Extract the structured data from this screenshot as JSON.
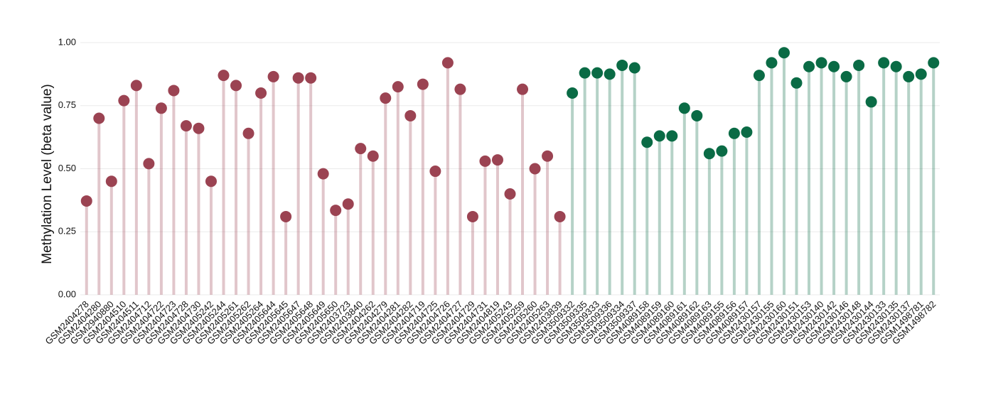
{
  "chart_data": {
    "type": "lollipop",
    "ylabel": "Methylation Level (beta value)",
    "ylim": [
      0,
      1
    ],
    "yticks": [
      {
        "value": 0,
        "label": "0.00"
      },
      {
        "value": 0.25,
        "label": "0.25"
      },
      {
        "value": 0.5,
        "label": "0.50"
      },
      {
        "value": 0.75,
        "label": "0.75"
      },
      {
        "value": 1,
        "label": "1.00"
      }
    ],
    "grid": true,
    "series": [
      {
        "color": "#9b4352",
        "categories": [
          "GSM2404278",
          "GSM2404280",
          "GSM2940880",
          "GSM2404510",
          "GSM2404511",
          "GSM2404712",
          "GSM2404722",
          "GSM2404723",
          "GSM2404728",
          "GSM2404730",
          "GSM2405242",
          "GSM2405244",
          "GSM2405261",
          "GSM2405262",
          "GSM2405264",
          "GSM2405644",
          "GSM2405645",
          "GSM2405647",
          "GSM2405648",
          "GSM2405649",
          "GSM2405650",
          "GSM2403723",
          "GSM2403840",
          "GSM2404262",
          "GSM2404279",
          "GSM2404281",
          "GSM2404282",
          "GSM2404719",
          "GSM2404725",
          "GSM2404726",
          "GSM2404727",
          "GSM2404729",
          "GSM2404731",
          "GSM2404819",
          "GSM2405243",
          "GSM2405259",
          "GSM2405260",
          "GSM2405263",
          "GSM2403839"
        ],
        "values": [
          0.372,
          0.7,
          0.45,
          0.77,
          0.83,
          0.52,
          0.74,
          0.81,
          0.67,
          0.66,
          0.45,
          0.87,
          0.83,
          0.64,
          0.8,
          0.865,
          0.31,
          0.86,
          0.86,
          0.48,
          0.335,
          0.36,
          0.58,
          0.55,
          0.78,
          0.825,
          0.71,
          0.835,
          0.49,
          0.92,
          0.815,
          0.31,
          0.53,
          0.535,
          0.4,
          0.815,
          0.5,
          0.55,
          0.31
        ]
      },
      {
        "color": "#0a6b45",
        "categories": [
          "GSM3509332",
          "GSM3509335",
          "GSM3509333",
          "GSM3509336",
          "GSM3509334",
          "GSM3509337",
          "GSM4089158",
          "GSM4089159",
          "GSM4089160",
          "GSM4089161",
          "GSM4089162",
          "GSM4089163",
          "GSM4089155",
          "GSM4089156",
          "GSM4089157",
          "GSM2430157",
          "GSM2430155",
          "GSM2430160",
          "GSM2430151",
          "GSM2430153",
          "GSM2430140",
          "GSM2430142",
          "GSM2430146",
          "GSM2430148",
          "GSM2430144",
          "GSM2430133",
          "GSM2430135",
          "GSM2430137",
          "GSM1498781",
          "GSM1498782"
        ],
        "values": [
          0.8,
          0.88,
          0.88,
          0.875,
          0.91,
          0.9,
          0.605,
          0.63,
          0.63,
          0.74,
          0.71,
          0.56,
          0.57,
          0.64,
          0.645,
          0.87,
          0.92,
          0.96,
          0.84,
          0.905,
          0.92,
          0.905,
          0.865,
          0.91,
          0.765,
          0.92,
          0.905,
          0.865,
          0.875,
          0.92
        ]
      }
    ]
  }
}
